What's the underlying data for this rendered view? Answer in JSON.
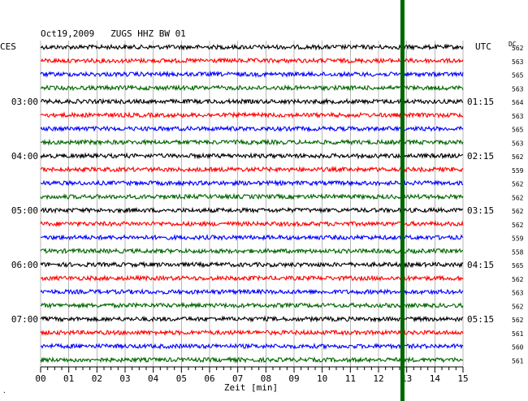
{
  "header": {
    "title": "Oct19,2009   ZUGS HHZ BW 01",
    "left_tz": "CES",
    "right_tz": "UTC",
    "dc_label": "DC"
  },
  "chart_data": {
    "type": "line",
    "title": "Oct19,2009   ZUGS HHZ BW 01",
    "xlabel": "Zeit [min]",
    "x_ticks": [
      "00",
      "01",
      "02",
      "03",
      "04",
      "05",
      "06",
      "07",
      "08",
      "09",
      "10",
      "11",
      "12",
      "13",
      "14",
      "15"
    ],
    "xlim": [
      0,
      15
    ],
    "grid": true,
    "trace_count": 24,
    "trace_colors": [
      "#000000",
      "#ff0000",
      "#0000ff",
      "#006600"
    ],
    "left_time_labels": [
      {
        "trace": 4,
        "label": "03:00"
      },
      {
        "trace": 8,
        "label": "04:00"
      },
      {
        "trace": 12,
        "label": "05:00"
      },
      {
        "trace": 16,
        "label": "06:00"
      },
      {
        "trace": 20,
        "label": "07:00"
      }
    ],
    "right_time_labels": [
      {
        "trace": 4,
        "label": "01:15"
      },
      {
        "trace": 8,
        "label": "02:15"
      },
      {
        "trace": 12,
        "label": "03:15"
      },
      {
        "trace": 16,
        "label": "04:15"
      },
      {
        "trace": 20,
        "label": "05:15"
      }
    ],
    "dc_values": [
      "562",
      "563",
      "565",
      "563",
      "564",
      "563",
      "565",
      "563",
      "562",
      "559",
      "562",
      "562",
      "562",
      "562",
      "559",
      "558",
      "565",
      "562",
      "563",
      "562",
      "562",
      "561",
      "560",
      "561"
    ],
    "event_marker": {
      "minute": 12.85,
      "color": "#006600"
    }
  },
  "corner_mark": "."
}
